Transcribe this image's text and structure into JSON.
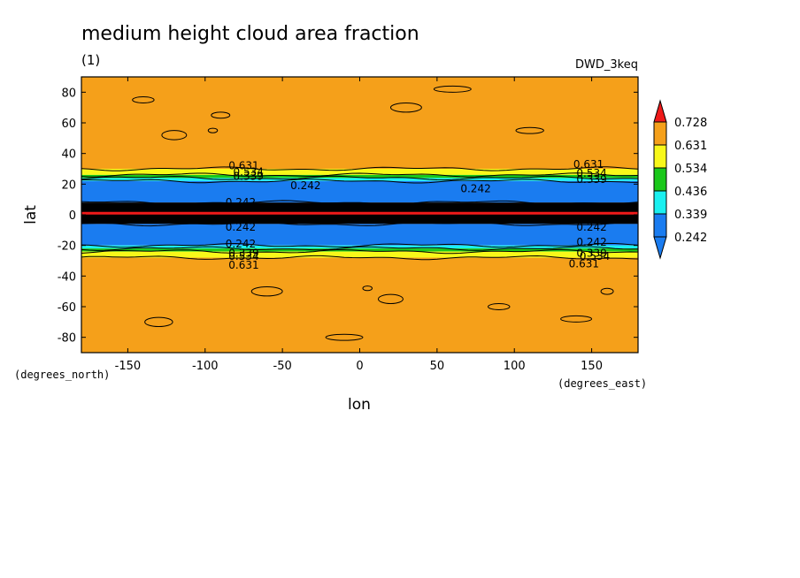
{
  "chart_data": {
    "type": "heatmap",
    "title": "medium height cloud area fraction",
    "subtitle": "(1)",
    "dataset_label": "DWD_3keq",
    "xlabel": "lon",
    "ylabel": "lat",
    "x_units": "(degrees_east)",
    "y_units": "(degrees_north)",
    "xlim": [
      -180,
      180
    ],
    "ylim": [
      -90,
      90
    ],
    "x_ticks": [
      "-150",
      "-100",
      "-50",
      "0",
      "50",
      "100",
      "150"
    ],
    "x_tick_values": [
      -150,
      -100,
      -50,
      0,
      50,
      100,
      150
    ],
    "y_ticks": [
      "80",
      "60",
      "40",
      "20",
      "0",
      "-20",
      "-40",
      "-60",
      "-80"
    ],
    "y_tick_values": [
      80,
      60,
      40,
      20,
      0,
      -20,
      -40,
      -60,
      -80
    ],
    "colorbar": {
      "levels": [
        "0.728",
        "0.631",
        "0.534",
        "0.436",
        "0.339",
        "0.242"
      ],
      "colors": [
        "#ef1a1a",
        "#f5a01a",
        "#f8f81a",
        "#1ac81a",
        "#1af0f0",
        "#1a7cf0"
      ],
      "under_color": "#1a7cf0",
      "over_color": "#ef1a1a",
      "extend": "both"
    },
    "bands": [
      {
        "lat_min": 30,
        "lat_max": 90,
        "level": "> 0.631",
        "color": "#f5a01a"
      },
      {
        "lat_min": 26,
        "lat_max": 30,
        "level": "0.534-0.631",
        "color": "#f8f81a"
      },
      {
        "lat_min": 24,
        "lat_max": 26,
        "level": "0.436-0.534",
        "color": "#1ac81a"
      },
      {
        "lat_min": 22,
        "lat_max": 24,
        "level": "0.339-0.436",
        "color": "#1af0f0"
      },
      {
        "lat_min": 8,
        "lat_max": 22,
        "level": "0.242-0.339",
        "color": "#1a7cf0"
      },
      {
        "lat_min": -6,
        "lat_max": 8,
        "level": "< 0.242",
        "color": "#000000"
      },
      {
        "lat_min": -20,
        "lat_max": -6,
        "level": "0.242-0.339",
        "color": "#1a7cf0"
      },
      {
        "lat_min": -22,
        "lat_max": -20,
        "level": "0.339-0.436",
        "color": "#1af0f0"
      },
      {
        "lat_min": -24,
        "lat_max": -22,
        "level": "0.436-0.534",
        "color": "#1ac81a"
      },
      {
        "lat_min": -28,
        "lat_max": -24,
        "level": "0.534-0.631",
        "color": "#f8f81a"
      },
      {
        "lat_min": -90,
        "lat_max": -28,
        "level": "> 0.631",
        "color": "#f5a01a"
      }
    ],
    "equator_line": {
      "lat": 1,
      "color": "#ef1a1a"
    },
    "contour_labels": [
      {
        "text": "0.631",
        "lon": -75,
        "lat": 32
      },
      {
        "text": "0.534",
        "lon": -72,
        "lat": 28
      },
      {
        "text": "0.339",
        "lon": -72,
        "lat": 25
      },
      {
        "text": "0.242",
        "lon": -35,
        "lat": 19
      },
      {
        "text": "0.242",
        "lon": -77,
        "lat": 8
      },
      {
        "text": "0.242",
        "lon": -77,
        "lat": -8
      },
      {
        "text": "0.242",
        "lon": 75,
        "lat": 17
      },
      {
        "text": "0.631",
        "lon": 148,
        "lat": 33
      },
      {
        "text": "0.534",
        "lon": 150,
        "lat": 27
      },
      {
        "text": "0.339",
        "lon": 150,
        "lat": 23
      },
      {
        "text": "0.242",
        "lon": 150,
        "lat": -8
      },
      {
        "text": "0.242",
        "lon": -77,
        "lat": -19
      },
      {
        "text": "0.339",
        "lon": -75,
        "lat": -25
      },
      {
        "text": "0.534",
        "lon": -75,
        "lat": -27
      },
      {
        "text": "0.631",
        "lon": -75,
        "lat": -33
      },
      {
        "text": "0.242",
        "lon": 150,
        "lat": -18
      },
      {
        "text": "0.339",
        "lon": 150,
        "lat": -25
      },
      {
        "text": "0.534",
        "lon": 152,
        "lat": -27
      },
      {
        "text": "0.631",
        "lon": 145,
        "lat": -32
      }
    ],
    "grid": false
  }
}
